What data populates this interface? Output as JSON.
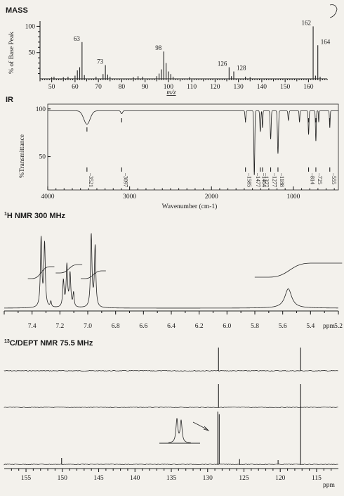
{
  "sections": {
    "mass_title": "MASS",
    "ir_title": "IR",
    "hnmr_title_prefix": "1",
    "hnmr_title": "H NMR 300 MHz",
    "cnmr_title_prefix": "13",
    "cnmr_title": "C/DEPT NMR 75.5 MHz"
  },
  "colors": {
    "ink": "#222222",
    "paper": "#f3f1ec"
  },
  "chart_data": [
    {
      "type": "bar",
      "panel": "mass",
      "xlabel": "m/z",
      "ylabel": "% of Base Peak",
      "xlim": [
        45,
        168
      ],
      "ylim": [
        0,
        110
      ],
      "x_ticks": [
        50,
        60,
        70,
        80,
        90,
        100,
        110,
        120,
        130,
        140,
        150,
        160
      ],
      "y_ticks": [
        50,
        100
      ],
      "peaks": [
        {
          "x": 50,
          "y": 3
        },
        {
          "x": 51,
          "y": 4
        },
        {
          "x": 55,
          "y": 3
        },
        {
          "x": 57,
          "y": 4
        },
        {
          "x": 60,
          "y": 6
        },
        {
          "x": 61,
          "y": 16
        },
        {
          "x": 62,
          "y": 22
        },
        {
          "x": 63,
          "y": 70
        },
        {
          "x": 64,
          "y": 7
        },
        {
          "x": 69,
          "y": 4
        },
        {
          "x": 72,
          "y": 9
        },
        {
          "x": 73,
          "y": 26
        },
        {
          "x": 74,
          "y": 8
        },
        {
          "x": 75,
          "y": 4
        },
        {
          "x": 85,
          "y": 3
        },
        {
          "x": 87,
          "y": 5
        },
        {
          "x": 89,
          "y": 4
        },
        {
          "x": 95,
          "y": 5
        },
        {
          "x": 96,
          "y": 10
        },
        {
          "x": 97,
          "y": 18
        },
        {
          "x": 98,
          "y": 52
        },
        {
          "x": 99,
          "y": 30
        },
        {
          "x": 100,
          "y": 14
        },
        {
          "x": 101,
          "y": 9
        },
        {
          "x": 102,
          "y": 4
        },
        {
          "x": 109,
          "y": 3
        },
        {
          "x": 126,
          "y": 22
        },
        {
          "x": 127,
          "y": 5
        },
        {
          "x": 128,
          "y": 14
        },
        {
          "x": 133,
          "y": 4
        },
        {
          "x": 135,
          "y": 3
        },
        {
          "x": 162,
          "y": 100
        },
        {
          "x": 163,
          "y": 6
        },
        {
          "x": 164,
          "y": 64
        },
        {
          "x": 165,
          "y": 4
        }
      ],
      "peak_labels": [
        {
          "x": 63,
          "y": 70,
          "text": "63"
        },
        {
          "x": 73,
          "y": 26,
          "text": "73"
        },
        {
          "x": 98,
          "y": 52,
          "text": "98"
        },
        {
          "x": 126,
          "y": 22,
          "text": "126"
        },
        {
          "x": 128,
          "y": 14,
          "text": "128"
        },
        {
          "x": 162,
          "y": 100,
          "text": "162"
        },
        {
          "x": 164,
          "y": 64,
          "text": "164"
        }
      ]
    },
    {
      "type": "line",
      "panel": "ir",
      "xlabel": "Wavenumber (cm-1)",
      "ylabel": "%Transmittance",
      "xlim": [
        4000,
        450
      ],
      "ylim": [
        15,
        105
      ],
      "x_ticks": [
        4000,
        3000,
        2000,
        1000
      ],
      "y_ticks": [
        50,
        100
      ],
      "baseline": 98,
      "bands": [
        {
          "x": 3521,
          "depth": 14,
          "width": 55
        },
        {
          "x": 3097,
          "depth": 3,
          "width": 15
        },
        {
          "x": 1585,
          "depth": 10,
          "width": 8
        },
        {
          "x": 1477,
          "depth": 68,
          "width": 8
        },
        {
          "x": 1404,
          "depth": 22,
          "width": 8
        },
        {
          "x": 1377,
          "depth": 18,
          "width": 6
        },
        {
          "x": 1277,
          "depth": 30,
          "width": 8
        },
        {
          "x": 1188,
          "depth": 45,
          "width": 9
        },
        {
          "x": 1060,
          "depth": 10,
          "width": 8
        },
        {
          "x": 925,
          "depth": 12,
          "width": 6
        },
        {
          "x": 814,
          "depth": 25,
          "width": 7
        },
        {
          "x": 725,
          "depth": 32,
          "width": 7
        },
        {
          "x": 690,
          "depth": 12,
          "width": 5
        },
        {
          "x": 555,
          "depth": 18,
          "width": 6
        }
      ],
      "band_labels": [
        "3521",
        "3097",
        "1585",
        "1477",
        "1404",
        "1377",
        "1277",
        "1188",
        "814",
        "725",
        "555"
      ]
    },
    {
      "type": "line",
      "panel": "hnmr",
      "xlabel": "ppm",
      "xlim": [
        7.6,
        5.2
      ],
      "x_ticks": [
        7.4,
        7.2,
        7.0,
        6.8,
        6.6,
        6.4,
        6.2,
        6.0,
        5.8,
        5.6,
        5.4,
        5.2
      ],
      "signals": [
        {
          "x": 7.335,
          "h": 100,
          "w": 0.006
        },
        {
          "x": 7.31,
          "h": 92,
          "w": 0.006
        },
        {
          "x": 7.265,
          "h": 8,
          "w": 0.005
        },
        {
          "x": 7.175,
          "h": 38,
          "w": 0.006
        },
        {
          "x": 7.15,
          "h": 60,
          "w": 0.006
        },
        {
          "x": 7.127,
          "h": 48,
          "w": 0.006
        },
        {
          "x": 7.102,
          "h": 20,
          "w": 0.005
        },
        {
          "x": 6.975,
          "h": 105,
          "w": 0.006
        },
        {
          "x": 6.947,
          "h": 88,
          "w": 0.006
        },
        {
          "x": 5.56,
          "h": 28,
          "w": 0.03
        }
      ],
      "integrals": [
        {
          "from": 7.4,
          "to": 7.27,
          "rise": 17
        },
        {
          "from": 7.2,
          "to": 7.07,
          "rise": 12
        },
        {
          "from": 7.02,
          "to": 6.9,
          "rise": 11
        },
        {
          "from": 5.7,
          "to": 5.4,
          "rise": 20
        }
      ]
    },
    {
      "type": "line",
      "panel": "cnmr",
      "xlabel": "ppm",
      "xlim": [
        158,
        112
      ],
      "x_ticks": [
        155,
        150,
        145,
        140,
        135,
        130,
        125,
        120,
        115
      ],
      "traces": [
        {
          "name": "",
          "peaks": [
            {
              "x": 128.5,
              "h": 100
            },
            {
              "x": 117.2,
              "h": 100
            }
          ]
        },
        {
          "name": "",
          "peaks": [
            {
              "x": 128.5,
              "h": 100
            },
            {
              "x": 117.2,
              "h": 100
            }
          ]
        },
        {
          "name": "",
          "peaks": [
            {
              "x": 150.1,
              "h": 12
            },
            {
              "x": 128.6,
              "h": 100
            },
            {
              "x": 128.4,
              "h": 95
            },
            {
              "x": 125.6,
              "h": 10
            },
            {
              "x": 120.3,
              "h": 8
            },
            {
              "x": 117.2,
              "h": 110
            }
          ]
        }
      ],
      "inset": {
        "peaks": 2,
        "note": ""
      }
    }
  ]
}
